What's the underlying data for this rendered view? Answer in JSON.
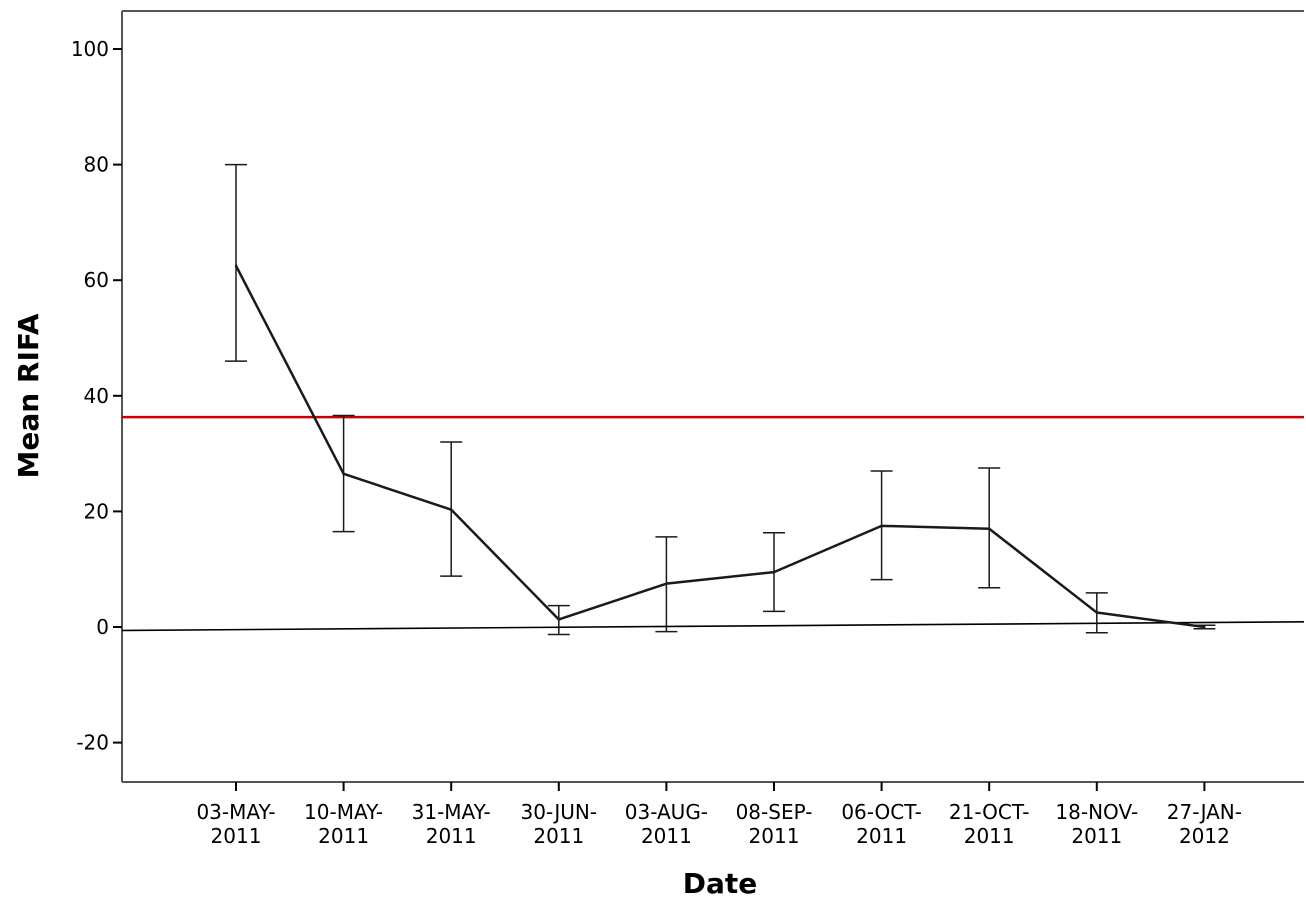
{
  "chart_data": {
    "type": "line",
    "title": "",
    "xlabel": "Date",
    "ylabel": "Mean RIFA",
    "ylim": [
      -20,
      100
    ],
    "yticks": [
      -20,
      0,
      20,
      40,
      60,
      80,
      100
    ],
    "ytick_labels": [
      "-20",
      "0",
      "20",
      "40",
      "60",
      "80",
      "100"
    ],
    "categories": [
      [
        "03-MAY-",
        "2011"
      ],
      [
        "10-MAY-",
        "2011"
      ],
      [
        "31-MAY-",
        "2011"
      ],
      [
        "30-JUN-",
        "2011"
      ],
      [
        "03-AUG-",
        "2011"
      ],
      [
        "08-SEP-",
        "2011"
      ],
      [
        "06-OCT-",
        "2011"
      ],
      [
        "21-OCT-",
        "2011"
      ],
      [
        "18-NOV-",
        "2011"
      ],
      [
        "27-JAN-",
        "2012"
      ]
    ],
    "series": [
      {
        "values": [
          62.5,
          26.5,
          20.3,
          1.3,
          7.5,
          9.5,
          17.5,
          17.0,
          2.5,
          0.0
        ],
        "error_low": [
          46.0,
          16.5,
          8.8,
          -1.3,
          -0.8,
          2.7,
          8.2,
          6.8,
          -1.0,
          -0.3
        ],
        "error_high": [
          80.0,
          36.6,
          32.0,
          3.7,
          15.6,
          16.3,
          27.0,
          27.5,
          5.9,
          0.3
        ],
        "color": "#1a1a1a"
      }
    ],
    "reference_lines": [
      {
        "orientation": "horizontal",
        "y": 36.3,
        "color": "#cc0000"
      },
      {
        "orientation": "trend",
        "y_start": -0.6,
        "y_end": 0.9,
        "color": "#000000"
      }
    ],
    "grid": false,
    "legend": "none"
  }
}
